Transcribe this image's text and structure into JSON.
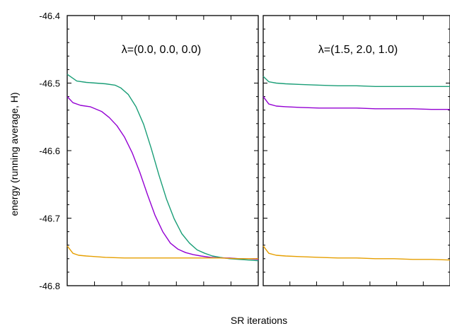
{
  "chart_data": {
    "type": "line",
    "ylabel": "energy (running average, H)",
    "xlabel": "SR iterations",
    "ylim": [
      -46.8,
      -46.4
    ],
    "yticks": [
      "-46.4",
      "-46.5",
      "-46.6",
      "-46.7",
      "-46.8"
    ],
    "ytick_values": [
      -46.4,
      -46.5,
      -46.6,
      -46.7,
      -46.8
    ],
    "xlim": [
      0,
      100
    ],
    "x_tick_count": 7,
    "grid": false,
    "panels": [
      {
        "title": "λ=(0.0, 0.0, 0.0)",
        "series": [
          {
            "color": "#1a9e77",
            "x": [
              0,
              5,
              10,
              15,
              20,
              25,
              28,
              32,
              36,
              40,
              44,
              48,
              52,
              56,
              60,
              64,
              68,
              72,
              76,
              80,
              85,
              90,
              95,
              100
            ],
            "y": [
              -46.487,
              -46.497,
              -46.499,
              -46.5,
              -46.501,
              -46.503,
              -46.507,
              -46.517,
              -46.535,
              -46.561,
              -46.597,
              -46.636,
              -46.672,
              -46.701,
              -46.723,
              -46.737,
              -46.747,
              -46.752,
              -46.756,
              -46.758,
              -46.76,
              -46.761,
              -46.762,
              -46.763
            ]
          },
          {
            "color": "#9400d3",
            "x": [
              0,
              3,
              7,
              12,
              18,
              22,
              26,
              30,
              34,
              38,
              42,
              46,
              50,
              54,
              58,
              62,
              66,
              70,
              75,
              80,
              85,
              90,
              95,
              100
            ],
            "y": [
              -46.52,
              -46.529,
              -46.533,
              -46.535,
              -46.542,
              -46.551,
              -46.563,
              -46.58,
              -46.603,
              -46.632,
              -46.665,
              -46.696,
              -46.72,
              -46.737,
              -46.746,
              -46.751,
              -46.754,
              -46.756,
              -46.758,
              -46.759,
              -46.759,
              -46.76,
              -46.76,
              -46.761
            ]
          },
          {
            "color": "#e69f00",
            "x": [
              0,
              3,
              6,
              10,
              15,
              20,
              30,
              40,
              50,
              60,
              70,
              80,
              90,
              100
            ],
            "y": [
              -46.741,
              -46.752,
              -46.755,
              -46.756,
              -46.757,
              -46.758,
              -46.759,
              -46.759,
              -46.759,
              -46.759,
              -46.759,
              -46.759,
              -46.76,
              -46.76
            ]
          }
        ]
      },
      {
        "title": "λ=(1.5, 2.0, 1.0)",
        "series": [
          {
            "color": "#1a9e77",
            "x": [
              0,
              3,
              7,
              12,
              20,
              30,
              40,
              50,
              60,
              70,
              80,
              90,
              100
            ],
            "y": [
              -46.49,
              -46.498,
              -46.5,
              -46.501,
              -46.502,
              -46.503,
              -46.504,
              -46.504,
              -46.505,
              -46.505,
              -46.505,
              -46.505,
              -46.505
            ]
          },
          {
            "color": "#9400d3",
            "x": [
              0,
              3,
              7,
              12,
              20,
              30,
              40,
              50,
              60,
              70,
              80,
              90,
              100
            ],
            "y": [
              -46.52,
              -46.531,
              -46.534,
              -46.535,
              -46.536,
              -46.537,
              -46.537,
              -46.537,
              -46.538,
              -46.538,
              -46.538,
              -46.539,
              -46.539
            ]
          },
          {
            "color": "#e69f00",
            "x": [
              0,
              3,
              7,
              12,
              20,
              30,
              40,
              50,
              60,
              70,
              80,
              90,
              100
            ],
            "y": [
              -46.741,
              -46.752,
              -46.755,
              -46.756,
              -46.757,
              -46.758,
              -46.759,
              -46.759,
              -46.76,
              -46.76,
              -46.761,
              -46.761,
              -46.762
            ]
          }
        ]
      }
    ]
  }
}
